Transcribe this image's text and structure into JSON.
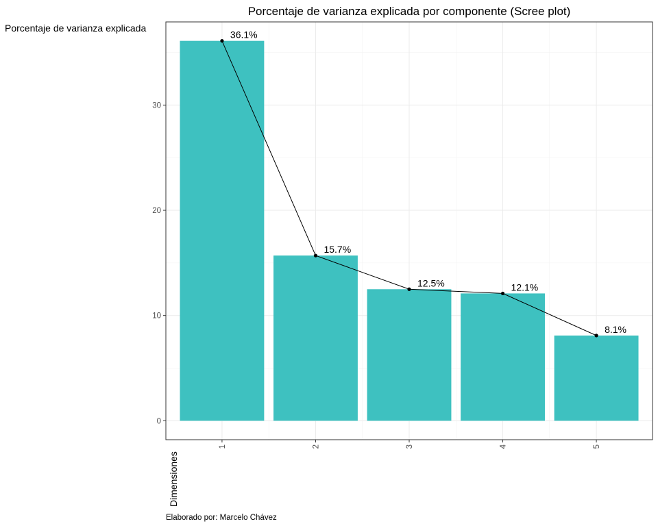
{
  "chart_data": {
    "type": "bar",
    "title": "Porcentaje de varianza explicada por componente (Scree plot)",
    "ylabel": "Porcentaje de varianza explicada",
    "xlabel": "Dimensiones",
    "caption": "Elaborado por: Marcelo Chávez",
    "categories": [
      "1",
      "2",
      "3",
      "4",
      "5"
    ],
    "values": [
      36.1,
      15.7,
      12.5,
      12.1,
      8.1
    ],
    "data_labels": [
      "36.1%",
      "15.7%",
      "12.5%",
      "12.1%",
      "8.1%"
    ],
    "yticks": [
      0,
      10,
      20,
      30
    ],
    "ytick_labels": [
      "0",
      "10",
      "20",
      "30"
    ],
    "ylim": [
      -1.8,
      37.9
    ],
    "overlay": "line-with-points",
    "grid": true,
    "bar_color": "#3EC1C0",
    "line_color": "#000000",
    "panel_border_color": "#333333"
  }
}
